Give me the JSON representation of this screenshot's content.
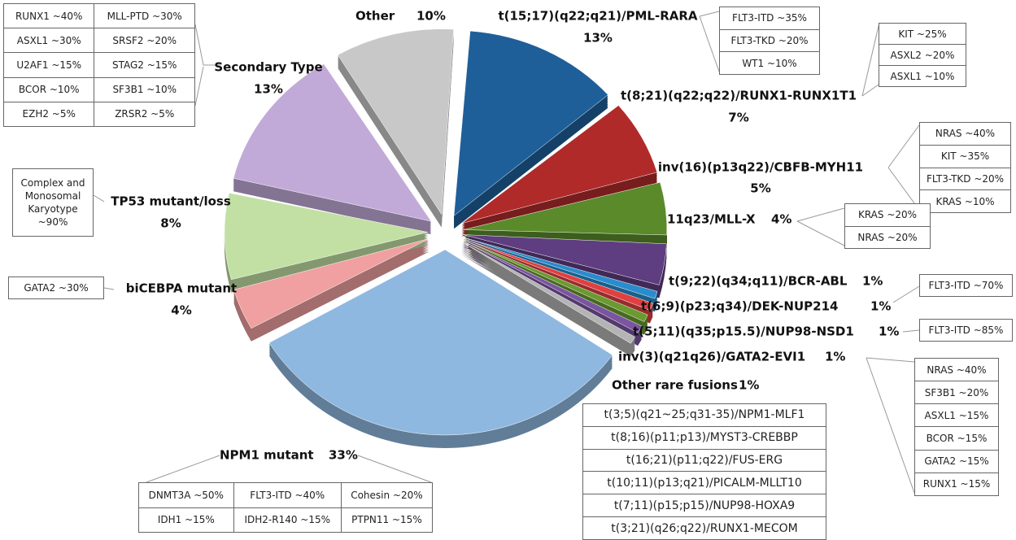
{
  "chart_data": {
    "type": "pie",
    "categories": [
      "t(15;17)(q22;q21)/PML-RARA",
      "t(8;21)(q22;q22)/RUNX1-RUNX1T1",
      "inv(16)(p13q22)/CBFB-MYH11",
      "11q23/MLL-X",
      "t(9;22)(q34;q11)/BCR-ABL",
      "t(6;9)(p23;q34)/DEK-NUP214",
      "t(5;11)(q35;p15.5)/NUP98-NSD1",
      "inv(3)(q21q26)/GATA2-EVI1",
      "Other rare fusions",
      "NPM1 mutant",
      "biCEBPA mutant",
      "TP53 mutant/loss",
      "Secondary Type",
      "Other"
    ],
    "values": [
      13,
      7,
      5,
      4,
      1,
      1,
      1,
      1,
      1,
      33,
      4,
      8,
      13,
      10
    ],
    "value_labels": [
      "13%",
      "7%",
      "5%",
      "4%",
      "1%",
      "1%",
      "1%",
      "1%",
      "1%",
      "33%",
      "4%",
      "8%",
      "13%",
      "10%"
    ],
    "colors": [
      "#1f5f99",
      "#b02a2a",
      "#5a8a2a",
      "#5e3d80",
      "#2a8ccc",
      "#e04040",
      "#6a9a30",
      "#7a55a0",
      "#b4b4b4",
      "#8fb8e0",
      "#f0a0a0",
      "#c2e0a4",
      "#c2aad8",
      "#c8c8c8"
    ],
    "annotations": [
      {
        "rows": [
          [
            "RUNX1 ~40%",
            "MLL-PTD ~30%"
          ],
          [
            "ASXL1 ~30%",
            "SRSF2 ~20%"
          ],
          [
            "U2AF1 ~15%",
            "STAG2 ~15%"
          ],
          [
            "BCOR ~10%",
            "SF3B1 ~10%"
          ],
          [
            "EZH2 ~5%",
            "ZRSR2 ~5%"
          ]
        ]
      },
      {
        "rows": [
          [
            "Complex and Monosomal Karyotype ~90%"
          ]
        ]
      },
      {
        "rows": [
          [
            "GATA2 ~30%"
          ]
        ]
      },
      {
        "rows": [
          [
            "DNMT3A ~50%",
            "FLT3-ITD ~40%",
            "Cohesin ~20%"
          ],
          [
            "IDH1 ~15%",
            "IDH2-R140 ~15%",
            "PTPN11 ~15%"
          ]
        ]
      },
      {
        "rows": [
          [
            "FLT3-ITD ~35%"
          ],
          [
            "FLT3-TKD ~20%"
          ],
          [
            "WT1 ~10%"
          ]
        ]
      },
      {
        "rows": [
          [
            "KIT ~25%"
          ],
          [
            "ASXL2 ~20%"
          ],
          [
            "ASXL1 ~10%"
          ]
        ]
      },
      {
        "rows": [
          [
            "NRAS ~40%"
          ],
          [
            "KIT ~35%"
          ],
          [
            "FLT3-TKD ~20%"
          ],
          [
            "KRAS ~10%"
          ]
        ]
      },
      {
        "rows": [
          [
            "KRAS ~20%"
          ],
          [
            "NRAS ~20%"
          ]
        ]
      },
      {
        "rows": [
          [
            "FLT3-ITD ~70%"
          ]
        ]
      },
      {
        "rows": [
          [
            "FLT3-ITD ~85%"
          ]
        ]
      },
      {
        "rows": [
          [
            "NRAS ~40%"
          ],
          [
            "SF3B1 ~20%"
          ],
          [
            "ASXL1 ~15%"
          ],
          [
            "BCOR ~15%"
          ],
          [
            "GATA2 ~15%"
          ],
          [
            "RUNX1 ~15%"
          ]
        ]
      },
      {
        "rows": [
          [
            "t(3;5)(q21~25;q31-35)/NPM1-MLF1"
          ],
          [
            "t(8;16)(p11;p13)/MYST3-CREBBP"
          ],
          [
            "t(16;21)(p11;q22)/FUS-ERG"
          ],
          [
            "t(10;11)(p13;q21)/PICALM-MLLT10"
          ],
          [
            "t(7;11)(p15;p15)/NUP98-HOXA9"
          ],
          [
            "t(3;21)(q26;q22)/RUNX1-MECOM"
          ]
        ]
      }
    ]
  }
}
